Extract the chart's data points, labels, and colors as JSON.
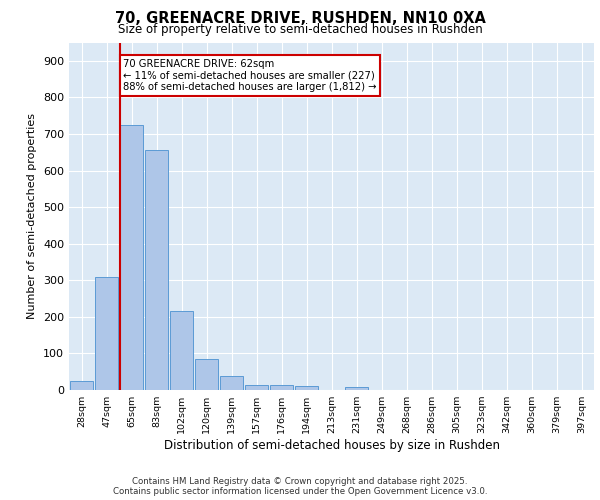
{
  "title": "70, GREENACRE DRIVE, RUSHDEN, NN10 0XA",
  "subtitle": "Size of property relative to semi-detached houses in Rushden",
  "xlabel": "Distribution of semi-detached houses by size in Rushden",
  "ylabel": "Number of semi-detached properties",
  "bar_labels": [
    "28sqm",
    "47sqm",
    "65sqm",
    "83sqm",
    "102sqm",
    "120sqm",
    "139sqm",
    "157sqm",
    "176sqm",
    "194sqm",
    "213sqm",
    "231sqm",
    "249sqm",
    "268sqm",
    "286sqm",
    "305sqm",
    "323sqm",
    "342sqm",
    "360sqm",
    "379sqm",
    "397sqm"
  ],
  "bar_values": [
    25,
    310,
    725,
    655,
    215,
    85,
    37,
    15,
    14,
    10,
    0,
    9,
    0,
    0,
    0,
    0,
    0,
    0,
    0,
    0,
    0
  ],
  "bar_color": "#aec6e8",
  "bar_edge_color": "#5b9bd5",
  "vline_color": "#cc0000",
  "annotation_text": "70 GREENACRE DRIVE: 62sqm\n← 11% of semi-detached houses are smaller (227)\n88% of semi-detached houses are larger (1,812) →",
  "annotation_box_color": "#ffffff",
  "annotation_box_edge": "#cc0000",
  "ylim": [
    0,
    950
  ],
  "yticks": [
    0,
    100,
    200,
    300,
    400,
    500,
    600,
    700,
    800,
    900
  ],
  "plot_bg_color": "#dce9f5",
  "footer_line1": "Contains HM Land Registry data © Crown copyright and database right 2025.",
  "footer_line2": "Contains public sector information licensed under the Open Government Licence v3.0."
}
